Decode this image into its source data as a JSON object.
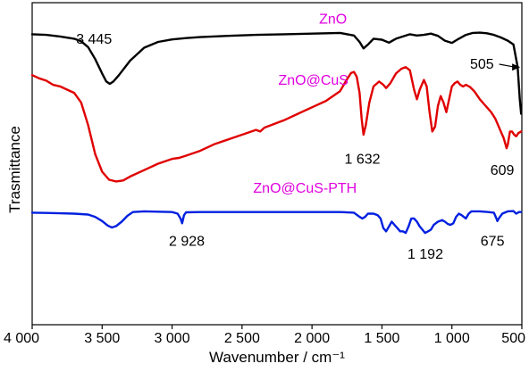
{
  "chart_data": {
    "type": "line",
    "title": "",
    "xlabel": "Wavenumber / cm⁻¹",
    "ylabel": "Trasmittance",
    "xlim": [
      4000,
      500
    ],
    "x_reversed": true,
    "y_ticks": false,
    "x_ticks": [
      4000,
      3500,
      3000,
      2500,
      2000,
      1500,
      1000,
      500
    ],
    "x_tick_labels": [
      "4 000",
      "3 500",
      "3 000",
      "2 500",
      "2 000",
      "1 500",
      "1 000",
      "500"
    ],
    "label_color": "#e000e0",
    "series": [
      {
        "name": "ZnO",
        "color": "#000000",
        "points": [
          [
            4000,
            0.902
          ],
          [
            3900,
            0.9
          ],
          [
            3800,
            0.895
          ],
          [
            3700,
            0.888
          ],
          [
            3650,
            0.88
          ],
          [
            3600,
            0.862
          ],
          [
            3550,
            0.825
          ],
          [
            3500,
            0.78
          ],
          [
            3470,
            0.755
          ],
          [
            3445,
            0.748
          ],
          [
            3420,
            0.755
          ],
          [
            3380,
            0.775
          ],
          [
            3300,
            0.82
          ],
          [
            3200,
            0.86
          ],
          [
            3100,
            0.878
          ],
          [
            3000,
            0.886
          ],
          [
            2900,
            0.89
          ],
          [
            2800,
            0.893
          ],
          [
            2600,
            0.897
          ],
          [
            2400,
            0.9
          ],
          [
            2200,
            0.902
          ],
          [
            2000,
            0.904
          ],
          [
            1800,
            0.906
          ],
          [
            1700,
            0.898
          ],
          [
            1660,
            0.878
          ],
          [
            1632,
            0.858
          ],
          [
            1600,
            0.87
          ],
          [
            1560,
            0.888
          ],
          [
            1500,
            0.885
          ],
          [
            1450,
            0.876
          ],
          [
            1400,
            0.888
          ],
          [
            1350,
            0.895
          ],
          [
            1300,
            0.902
          ],
          [
            1250,
            0.898
          ],
          [
            1200,
            0.9
          ],
          [
            1150,
            0.904
          ],
          [
            1100,
            0.897
          ],
          [
            1050,
            0.882
          ],
          [
            1000,
            0.875
          ],
          [
            950,
            0.888
          ],
          [
            900,
            0.9
          ],
          [
            850,
            0.906
          ],
          [
            800,
            0.907
          ],
          [
            750,
            0.905
          ],
          [
            700,
            0.9
          ],
          [
            650,
            0.892
          ],
          [
            600,
            0.882
          ],
          [
            560,
            0.87
          ],
          [
            530,
            0.8
          ],
          [
            515,
            0.7
          ],
          [
            505,
            0.655
          ]
        ]
      },
      {
        "name": "ZnO@CuS",
        "color": "#e00000",
        "points": [
          [
            4000,
            0.775
          ],
          [
            3950,
            0.765
          ],
          [
            3900,
            0.758
          ],
          [
            3850,
            0.745
          ],
          [
            3800,
            0.74
          ],
          [
            3750,
            0.73
          ],
          [
            3700,
            0.72
          ],
          [
            3650,
            0.69
          ],
          [
            3600,
            0.62
          ],
          [
            3550,
            0.53
          ],
          [
            3500,
            0.475
          ],
          [
            3450,
            0.45
          ],
          [
            3400,
            0.445
          ],
          [
            3350,
            0.448
          ],
          [
            3300,
            0.46
          ],
          [
            3200,
            0.48
          ],
          [
            3100,
            0.5
          ],
          [
            3000,
            0.515
          ],
          [
            2950,
            0.518
          ],
          [
            2900,
            0.525
          ],
          [
            2800,
            0.54
          ],
          [
            2700,
            0.56
          ],
          [
            2600,
            0.575
          ],
          [
            2500,
            0.59
          ],
          [
            2400,
            0.605
          ],
          [
            2370,
            0.6
          ],
          [
            2340,
            0.612
          ],
          [
            2200,
            0.635
          ],
          [
            2100,
            0.655
          ],
          [
            2000,
            0.675
          ],
          [
            1900,
            0.695
          ],
          [
            1800,
            0.725
          ],
          [
            1750,
            0.762
          ],
          [
            1720,
            0.782
          ],
          [
            1700,
            0.785
          ],
          [
            1680,
            0.77
          ],
          [
            1660,
            0.72
          ],
          [
            1645,
            0.64
          ],
          [
            1632,
            0.59
          ],
          [
            1615,
            0.62
          ],
          [
            1590,
            0.69
          ],
          [
            1560,
            0.74
          ],
          [
            1520,
            0.755
          ],
          [
            1490,
            0.745
          ],
          [
            1470,
            0.735
          ],
          [
            1440,
            0.75
          ],
          [
            1400,
            0.78
          ],
          [
            1360,
            0.795
          ],
          [
            1330,
            0.8
          ],
          [
            1300,
            0.79
          ],
          [
            1270,
            0.73
          ],
          [
            1250,
            0.7
          ],
          [
            1230,
            0.73
          ],
          [
            1200,
            0.76
          ],
          [
            1180,
            0.74
          ],
          [
            1160,
            0.66
          ],
          [
            1140,
            0.6
          ],
          [
            1120,
            0.615
          ],
          [
            1100,
            0.68
          ],
          [
            1080,
            0.71
          ],
          [
            1060,
            0.69
          ],
          [
            1040,
            0.66
          ],
          [
            1020,
            0.7
          ],
          [
            1000,
            0.74
          ],
          [
            980,
            0.75
          ],
          [
            960,
            0.755
          ],
          [
            940,
            0.745
          ],
          [
            920,
            0.74
          ],
          [
            900,
            0.745
          ],
          [
            870,
            0.738
          ],
          [
            840,
            0.725
          ],
          [
            800,
            0.7
          ],
          [
            760,
            0.68
          ],
          [
            720,
            0.66
          ],
          [
            690,
            0.64
          ],
          [
            660,
            0.61
          ],
          [
            630,
            0.58
          ],
          [
            609,
            0.548
          ],
          [
            600,
            0.56
          ],
          [
            585,
            0.6
          ],
          [
            570,
            0.6
          ],
          [
            555,
            0.59
          ],
          [
            540,
            0.585
          ],
          [
            525,
            0.595
          ],
          [
            505,
            0.6
          ]
        ]
      },
      {
        "name": "ZnO@CuS-PTH",
        "color": "#0020e0",
        "points": [
          [
            4000,
            0.348
          ],
          [
            3900,
            0.347
          ],
          [
            3800,
            0.346
          ],
          [
            3700,
            0.345
          ],
          [
            3600,
            0.342
          ],
          [
            3550,
            0.335
          ],
          [
            3500,
            0.322
          ],
          [
            3460,
            0.308
          ],
          [
            3430,
            0.302
          ],
          [
            3400,
            0.306
          ],
          [
            3360,
            0.32
          ],
          [
            3320,
            0.338
          ],
          [
            3280,
            0.35
          ],
          [
            3200,
            0.352
          ],
          [
            3100,
            0.351
          ],
          [
            3000,
            0.35
          ],
          [
            2960,
            0.345
          ],
          [
            2940,
            0.33
          ],
          [
            2928,
            0.315
          ],
          [
            2915,
            0.34
          ],
          [
            2900,
            0.349
          ],
          [
            2800,
            0.35
          ],
          [
            2600,
            0.35
          ],
          [
            2400,
            0.35
          ],
          [
            2200,
            0.35
          ],
          [
            2000,
            0.35
          ],
          [
            1800,
            0.35
          ],
          [
            1700,
            0.348
          ],
          [
            1660,
            0.335
          ],
          [
            1640,
            0.33
          ],
          [
            1620,
            0.335
          ],
          [
            1600,
            0.345
          ],
          [
            1560,
            0.345
          ],
          [
            1530,
            0.34
          ],
          [
            1510,
            0.33
          ],
          [
            1490,
            0.3
          ],
          [
            1470,
            0.29
          ],
          [
            1450,
            0.305
          ],
          [
            1430,
            0.32
          ],
          [
            1410,
            0.31
          ],
          [
            1390,
            0.3
          ],
          [
            1370,
            0.29
          ],
          [
            1350,
            0.29
          ],
          [
            1330,
            0.285
          ],
          [
            1310,
            0.305
          ],
          [
            1290,
            0.33
          ],
          [
            1270,
            0.33
          ],
          [
            1250,
            0.32
          ],
          [
            1230,
            0.305
          ],
          [
            1210,
            0.295
          ],
          [
            1192,
            0.285
          ],
          [
            1170,
            0.29
          ],
          [
            1150,
            0.295
          ],
          [
            1130,
            0.31
          ],
          [
            1100,
            0.32
          ],
          [
            1070,
            0.325
          ],
          [
            1050,
            0.32
          ],
          [
            1030,
            0.313
          ],
          [
            1010,
            0.31
          ],
          [
            990,
            0.315
          ],
          [
            970,
            0.335
          ],
          [
            950,
            0.345
          ],
          [
            930,
            0.34
          ],
          [
            900,
            0.33
          ],
          [
            880,
            0.345
          ],
          [
            860,
            0.352
          ],
          [
            800,
            0.352
          ],
          [
            740,
            0.35
          ],
          [
            700,
            0.348
          ],
          [
            690,
            0.338
          ],
          [
            680,
            0.328
          ],
          [
            675,
            0.322
          ],
          [
            665,
            0.33
          ],
          [
            640,
            0.345
          ],
          [
            600,
            0.352
          ],
          [
            560,
            0.353
          ],
          [
            540,
            0.345
          ],
          [
            520,
            0.35
          ],
          [
            505,
            0.35
          ]
        ]
      }
    ],
    "series_labels": [
      {
        "text": "ZnO",
        "x": 1850,
        "y": 0.935,
        "anchor": "middle"
      },
      {
        "text": "ZnO@CuS",
        "x": 1990,
        "y": 0.745,
        "anchor": "middle"
      },
      {
        "text": "ZnO@CuS-PTH",
        "x": 2050,
        "y": 0.41,
        "anchor": "middle"
      }
    ],
    "annotations": [
      {
        "text": "3 445",
        "x": 3430,
        "y": 0.872,
        "anchor": "end"
      },
      {
        "text": "505",
        "x": 700,
        "y": 0.795,
        "anchor": "end",
        "arrow_to": [
          512,
          0.8
        ]
      },
      {
        "text": "1 632",
        "x": 1640,
        "y": 0.5,
        "anchor": "middle"
      },
      {
        "text": "609",
        "x": 640,
        "y": 0.465,
        "anchor": "middle"
      },
      {
        "text": "2 928",
        "x": 2895,
        "y": 0.245,
        "anchor": "middle"
      },
      {
        "text": "1 192",
        "x": 1190,
        "y": 0.205,
        "anchor": "middle"
      },
      {
        "text": "675",
        "x": 710,
        "y": 0.245,
        "anchor": "middle"
      }
    ]
  }
}
